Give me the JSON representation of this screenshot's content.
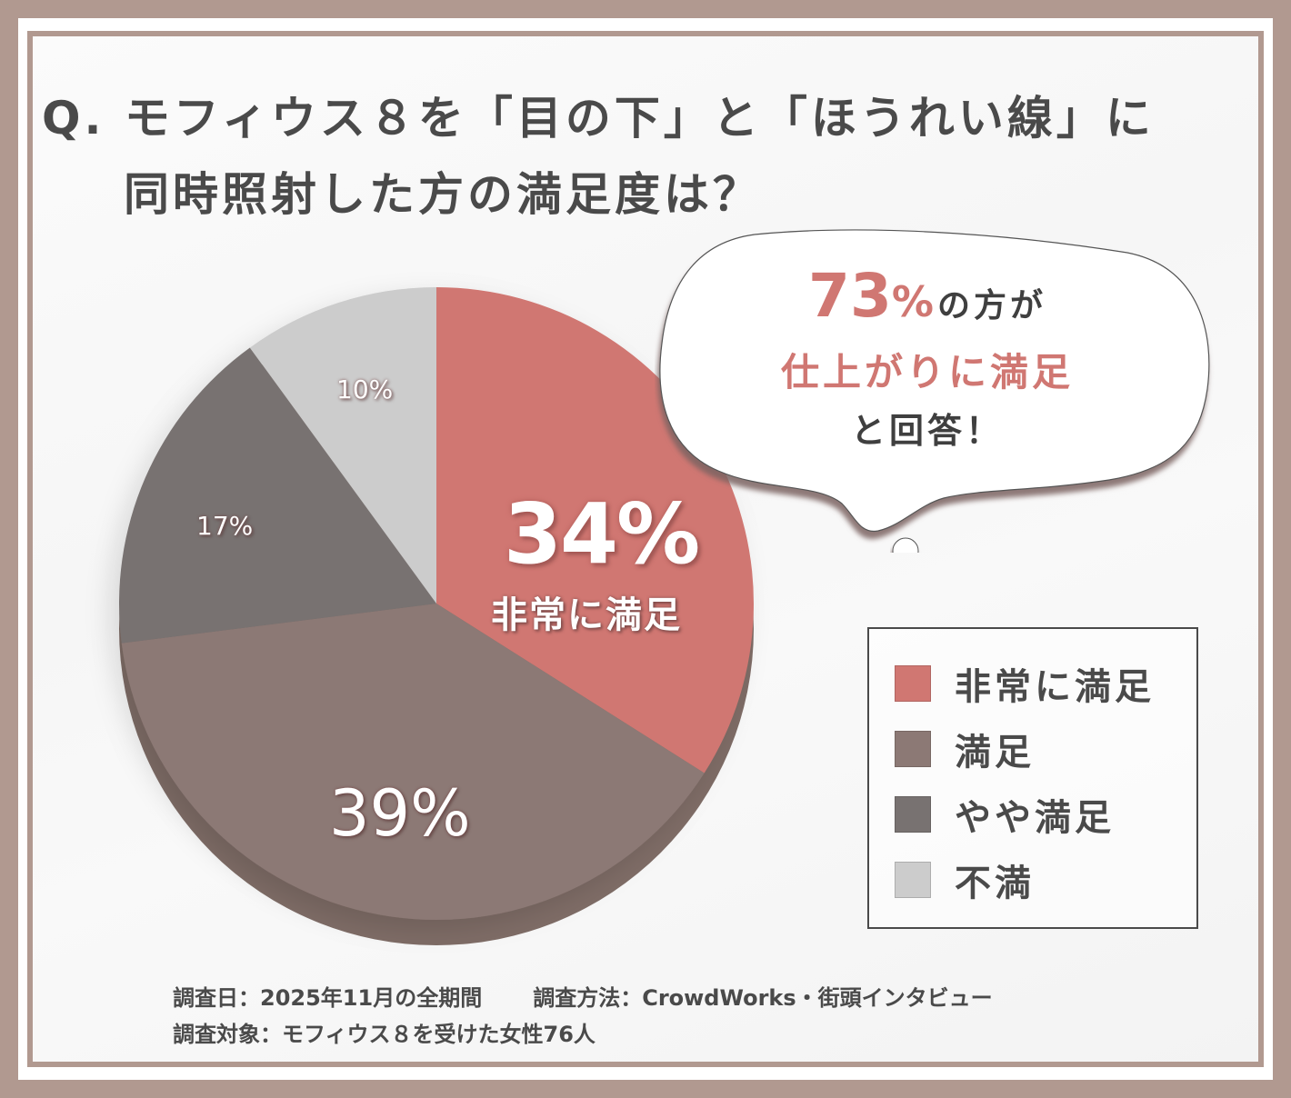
{
  "title": {
    "line1": "Q. モフィウス８を「目の下」と「ほうれい線」に",
    "line2": "同時照射した方の満足度は？"
  },
  "bubble": {
    "highlight_number": "73",
    "highlight_percent": "%",
    "line1_suffix": "の方が",
    "line2": "仕上がりに満足",
    "line3": "と回答！"
  },
  "legend": {
    "items": [
      {
        "label": "非常に満足",
        "color": "#d07772"
      },
      {
        "label": "満足",
        "color": "#8c7975"
      },
      {
        "label": "やや満足",
        "color": "#787271"
      },
      {
        "label": "不満",
        "color": "#cccccc"
      }
    ]
  },
  "pie_labels": {
    "very_satisfied_value": "34%",
    "very_satisfied_text": "非常に満足",
    "satisfied_value": "39%",
    "somewhat_value": "17%",
    "dissatisfied_value": "10%"
  },
  "footer": {
    "survey_date": "調査日：2025年11月の全期間",
    "survey_method": "調査方法：CrowdWorks・街頭インタビュー",
    "survey_target": "調査対象：モフィウス８を受けた女性76人"
  },
  "colors": {
    "frame": "#b19990",
    "text": "#4a4a4a",
    "accent": "#d07772"
  },
  "chart_data": {
    "type": "pie",
    "title": "Q. モフィウス８を「目の下」と「ほうれい線」に同時照射した方の満足度は？",
    "categories": [
      "非常に満足",
      "満足",
      "やや満足",
      "不満"
    ],
    "values": [
      34,
      39,
      17,
      10
    ],
    "unit": "%",
    "colors": [
      "#d07772",
      "#8c7975",
      "#787271",
      "#cccccc"
    ],
    "start_angle": "12 o'clock, clockwise",
    "legend_position": "right",
    "annotation": "73%の方が仕上がりに満足と回答！",
    "sample_size": 76
  }
}
